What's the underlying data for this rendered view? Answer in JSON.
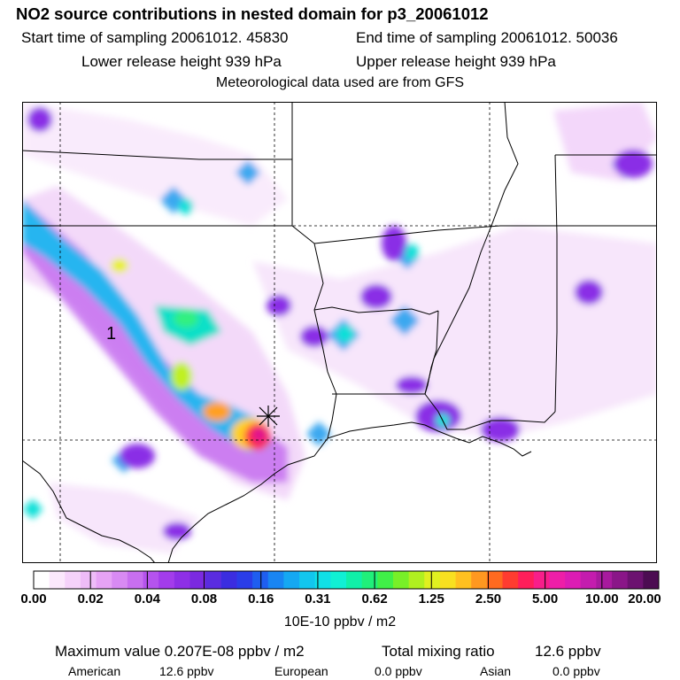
{
  "header": {
    "title": "NO2 source contributions in nested domain for p3_20061012",
    "start_time": "Start time of sampling 20061012. 45830",
    "end_time": "End time of sampling 20061012. 50036",
    "lower_height": "Lower release height  939 hPa",
    "upper_height": "Upper release height  939 hPa",
    "met_note": "Meteorological data used are from GFS"
  },
  "map": {
    "marker_label": "1",
    "background": "#ffffff",
    "boundary_color": "#000000"
  },
  "colorbar": {
    "colors": [
      "#ffffff",
      "#fbe8fc",
      "#f5d2fa",
      "#eebcf8",
      "#e6a3f5",
      "#d88af3",
      "#c86ff0",
      "#b553ee",
      "#a33ceb",
      "#8e2fe6",
      "#7b2ae0",
      "#5a2ce0",
      "#3b2de0",
      "#2a3de8",
      "#1f5ef0",
      "#1985f2",
      "#15a8f2",
      "#12c6ee",
      "#10e0e6",
      "#10f0d4",
      "#10f0a8",
      "#20f07a",
      "#40f048",
      "#78f028",
      "#b0f020",
      "#e0f020",
      "#f8e020",
      "#ffc020",
      "#ff9820",
      "#ff6a20",
      "#ff3c30",
      "#ff1e5a",
      "#f81e8a",
      "#ee1ea8",
      "#dc1cb4",
      "#c41cae",
      "#a81a9e",
      "#8a1688",
      "#6c1270",
      "#4c0c52"
    ],
    "labels": [
      "0.00",
      "0.02",
      "0.04",
      "0.08",
      "0.16",
      "0.31",
      "0.62",
      "1.25",
      "2.50",
      "5.00",
      "10.00",
      "20.00"
    ],
    "units": "10E-10 ppbv / m2"
  },
  "summary": {
    "max_label": "Maximum value  0.207E-08 ppbv / m2",
    "total_label": "Total mixing ratio",
    "total_value": "12.6 ppbv",
    "american_label": "American",
    "american_value": "12.6 ppbv",
    "european_label": "European",
    "european_value": "0.0 ppbv",
    "asian_label": "Asian",
    "asian_value": "0.0 ppbv"
  }
}
